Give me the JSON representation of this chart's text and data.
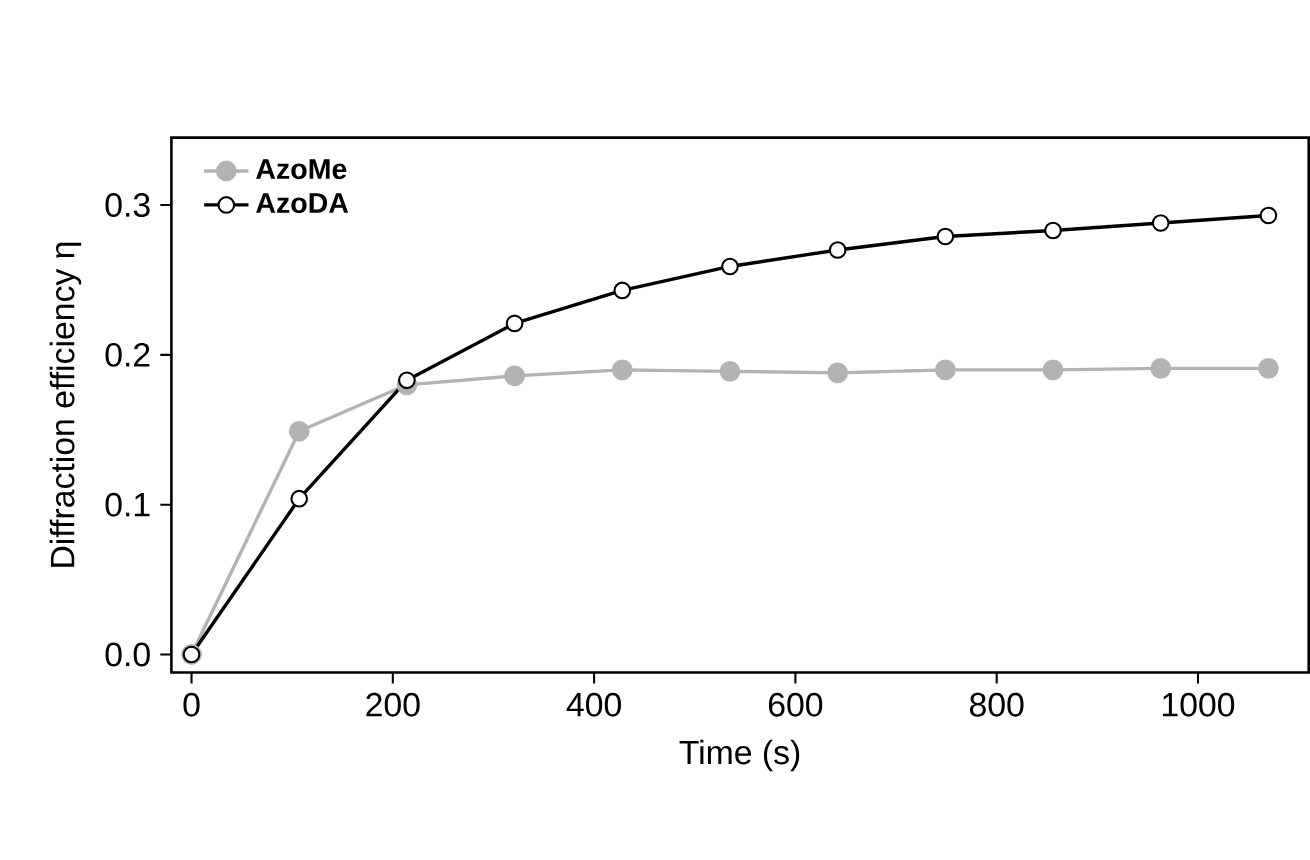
{
  "chart_data": {
    "type": "line",
    "xlabel": "Time (s)",
    "ylabel": "Diffraction efficiency η",
    "x": [
      0,
      107,
      214,
      321,
      428,
      535,
      642,
      749,
      856,
      963,
      1070
    ],
    "series": [
      {
        "name": "AzoMe",
        "color": "#b3b3b3",
        "values": [
          0,
          0.149,
          0.18,
          0.186,
          0.19,
          0.189,
          0.188,
          0.19,
          0.19,
          0.191,
          0.191
        ]
      },
      {
        "name": "AzoDA",
        "color": "#000000",
        "values": [
          0,
          0.104,
          0.183,
          0.221,
          0.243,
          0.259,
          0.27,
          0.279,
          0.283,
          0.288,
          0.293
        ]
      }
    ],
    "xlim": [
      -20,
      1110
    ],
    "ylim": [
      -0.012,
      0.345
    ],
    "xticks": [
      0,
      200,
      400,
      600,
      800,
      1000
    ],
    "yticks": [
      {
        "value": 0,
        "label": "0.0"
      },
      0.1,
      0.2,
      0.3
    ],
    "legend": "top left",
    "marker": "circle",
    "line_style": "solid"
  }
}
